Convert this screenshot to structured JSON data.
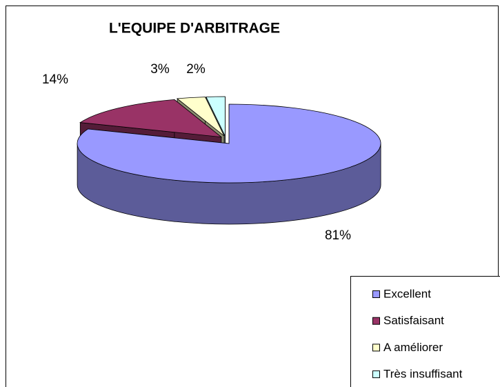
{
  "chart_data": {
    "type": "pie",
    "title": "L'EQUIPE D'ARBITRAGE",
    "categories": [
      "Excellent",
      "Satisfaisant",
      "A améliorer",
      "Très insuffisant"
    ],
    "values": [
      81,
      14,
      3,
      2
    ],
    "value_labels": [
      "81%",
      "14%",
      "3%",
      "2%"
    ],
    "colors": [
      "#9999ff",
      "#993366",
      "#ffffcc",
      "#ccffff"
    ],
    "legend": "bottom-right"
  }
}
